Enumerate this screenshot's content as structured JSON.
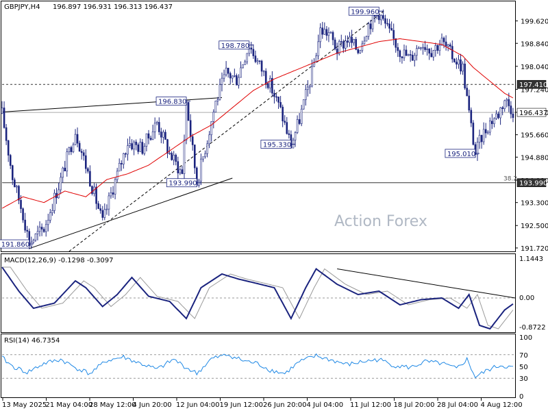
{
  "header": {
    "symbol": "GBPJPY,H4",
    "ohlc": "196.897 196.931 196.313 196.437"
  },
  "watermark": "Action Forex",
  "fib_label": "38.2",
  "price_axis": {
    "ticks": [
      "199.620",
      "198.840",
      "198.040",
      "197.240",
      "196.440",
      "195.660",
      "194.880",
      "194.080",
      "193.300",
      "192.500",
      "191.720"
    ],
    "tick_values": [
      199.62,
      198.84,
      198.04,
      197.24,
      196.44,
      195.66,
      194.88,
      194.08,
      193.3,
      192.5,
      191.72
    ],
    "current_price": "196.437",
    "level_top": "197.410",
    "level_bottom": "193.990",
    "current_price_value": 196.437,
    "level_top_value": 197.41,
    "level_bottom_value": 193.99
  },
  "annotations": [
    {
      "text": "191.860",
      "value": 191.86,
      "bar": 13
    },
    {
      "text": "196.830",
      "value": 196.83,
      "bar": 88
    },
    {
      "text": "193.990",
      "value": 193.99,
      "bar": 93
    },
    {
      "text": "198.780",
      "value": 198.78,
      "bar": 118
    },
    {
      "text": "195.330",
      "value": 195.33,
      "bar": 138
    },
    {
      "text": "199.960",
      "value": 199.96,
      "bar": 180
    },
    {
      "text": "195.010",
      "value": 195.01,
      "bar": 226
    }
  ],
  "macd": {
    "title": "MACD(12,26,9) -0.1298 -0.3097",
    "ticks": [
      "1.1443",
      "0.00",
      "0.00",
      "-0.8722"
    ]
  },
  "rsi": {
    "title": "RSI(14) 46.7354",
    "ticks": [
      "100",
      "70",
      "50",
      "30",
      "0"
    ],
    "tick_values": [
      100,
      70,
      50,
      30,
      0
    ]
  },
  "time_axis": {
    "labels": [
      "13 May 2025",
      "21 May 04:00",
      "28 May 12:00",
      "4 Jun 20:00",
      "12 Jun 04:00",
      "19 Jun 12:00",
      "26 Jun 20:00",
      "4 Jul 04:00",
      "11 Jul 12:00",
      "18 Jul 20:00",
      "28 Jul 04:00",
      "4 Aug 12:00"
    ]
  },
  "chart_data": {
    "type": "candlestick",
    "symbol": "GBPJPY",
    "timeframe": "H4",
    "ylim": [
      191.6,
      200.3
    ],
    "horizontal_levels": [
      197.41,
      196.437,
      193.99
    ],
    "moving_average_color": "#e00000",
    "candle_color": "#1a237e",
    "trendline_color": "#000000",
    "swing_points": [
      {
        "label": "191.860",
        "value": 191.86,
        "bar": 13
      },
      {
        "label": "196.830",
        "value": 196.83,
        "bar": 88
      },
      {
        "label": "193.990",
        "value": 193.99,
        "bar": 93
      },
      {
        "label": "198.780",
        "value": 198.78,
        "bar": 118
      },
      {
        "label": "195.330",
        "value": 195.33,
        "bar": 138
      },
      {
        "label": "199.960",
        "value": 199.96,
        "bar": 180
      },
      {
        "label": "195.010",
        "value": 195.01,
        "bar": 226
      }
    ],
    "bars": 245,
    "close_path": [
      [
        0,
        196.4
      ],
      [
        5,
        194.2
      ],
      [
        10,
        192.9
      ],
      [
        13,
        191.9
      ],
      [
        20,
        192.4
      ],
      [
        28,
        194.1
      ],
      [
        35,
        195.8
      ],
      [
        42,
        194.1
      ],
      [
        48,
        192.6
      ],
      [
        52,
        193.6
      ],
      [
        60,
        195.4
      ],
      [
        67,
        195.2
      ],
      [
        74,
        196.1
      ],
      [
        80,
        195.0
      ],
      [
        86,
        194.3
      ],
      [
        88,
        196.8
      ],
      [
        93,
        194.0
      ],
      [
        98,
        195.5
      ],
      [
        102,
        196.8
      ],
      [
        107,
        197.8
      ],
      [
        112,
        197.6
      ],
      [
        118,
        198.8
      ],
      [
        122,
        198.2
      ],
      [
        128,
        197.4
      ],
      [
        133,
        196.5
      ],
      [
        138,
        195.3
      ],
      [
        142,
        196.2
      ],
      [
        148,
        197.8
      ],
      [
        152,
        199.3
      ],
      [
        156,
        199.2
      ],
      [
        160,
        198.6
      ],
      [
        165,
        199.0
      ],
      [
        170,
        198.6
      ],
      [
        175,
        199.5
      ],
      [
        180,
        199.9
      ],
      [
        185,
        199.2
      ],
      [
        190,
        198.6
      ],
      [
        195,
        198.3
      ],
      [
        200,
        198.9
      ],
      [
        205,
        198.6
      ],
      [
        210,
        198.9
      ],
      [
        215,
        198.4
      ],
      [
        220,
        198.0
      ],
      [
        223,
        196.4
      ],
      [
        226,
        195.0
      ],
      [
        229,
        195.6
      ],
      [
        233,
        196.1
      ],
      [
        237,
        196.4
      ],
      [
        240,
        196.9
      ],
      [
        245,
        196.4
      ]
    ],
    "ma_path": [
      [
        0,
        193.1
      ],
      [
        10,
        193.5
      ],
      [
        20,
        193.3
      ],
      [
        30,
        193.7
      ],
      [
        40,
        193.5
      ],
      [
        50,
        194.1
      ],
      [
        60,
        194.3
      ],
      [
        70,
        194.6
      ],
      [
        80,
        195.1
      ],
      [
        90,
        195.6
      ],
      [
        100,
        196.0
      ],
      [
        110,
        196.6
      ],
      [
        120,
        197.2
      ],
      [
        130,
        197.6
      ],
      [
        140,
        197.9
      ],
      [
        150,
        198.2
      ],
      [
        160,
        198.5
      ],
      [
        170,
        198.7
      ],
      [
        180,
        198.9
      ],
      [
        190,
        199.0
      ],
      [
        200,
        198.9
      ],
      [
        210,
        198.8
      ],
      [
        215,
        198.6
      ],
      [
        220,
        198.4
      ],
      [
        225,
        198.0
      ],
      [
        230,
        197.7
      ],
      [
        235,
        197.4
      ],
      [
        240,
        197.1
      ],
      [
        245,
        196.9
      ]
    ],
    "macd_path": [
      [
        0,
        0.9
      ],
      [
        8,
        0.2
      ],
      [
        15,
        -0.3
      ],
      [
        25,
        -0.15
      ],
      [
        35,
        0.5
      ],
      [
        40,
        0.3
      ],
      [
        48,
        -0.25
      ],
      [
        55,
        0.1
      ],
      [
        62,
        0.6
      ],
      [
        70,
        0.05
      ],
      [
        80,
        -0.1
      ],
      [
        88,
        -0.6
      ],
      [
        95,
        0.3
      ],
      [
        105,
        0.7
      ],
      [
        113,
        0.55
      ],
      [
        120,
        0.45
      ],
      [
        130,
        0.3
      ],
      [
        138,
        -0.6
      ],
      [
        145,
        0.3
      ],
      [
        150,
        0.85
      ],
      [
        160,
        0.4
      ],
      [
        170,
        0.1
      ],
      [
        180,
        0.2
      ],
      [
        190,
        -0.2
      ],
      [
        200,
        -0.05
      ],
      [
        210,
        0.0
      ],
      [
        218,
        -0.3
      ],
      [
        223,
        0.1
      ],
      [
        228,
        -0.8
      ],
      [
        233,
        -0.9
      ],
      [
        240,
        -0.35
      ],
      [
        245,
        -0.13
      ]
    ],
    "rsi_path": [
      [
        0,
        65
      ],
      [
        5,
        50
      ],
      [
        12,
        40
      ],
      [
        20,
        55
      ],
      [
        28,
        62
      ],
      [
        35,
        48
      ],
      [
        42,
        38
      ],
      [
        50,
        60
      ],
      [
        58,
        66
      ],
      [
        66,
        55
      ],
      [
        74,
        45
      ],
      [
        82,
        62
      ],
      [
        88,
        48
      ],
      [
        93,
        38
      ],
      [
        100,
        63
      ],
      [
        108,
        70
      ],
      [
        115,
        60
      ],
      [
        122,
        55
      ],
      [
        128,
        44
      ],
      [
        135,
        38
      ],
      [
        142,
        58
      ],
      [
        150,
        68
      ],
      [
        158,
        60
      ],
      [
        165,
        53
      ],
      [
        172,
        58
      ],
      [
        180,
        62
      ],
      [
        187,
        52
      ],
      [
        195,
        48
      ],
      [
        202,
        58
      ],
      [
        210,
        55
      ],
      [
        217,
        46
      ],
      [
        222,
        62
      ],
      [
        226,
        32
      ],
      [
        232,
        44
      ],
      [
        238,
        52
      ],
      [
        245,
        47
      ]
    ]
  }
}
